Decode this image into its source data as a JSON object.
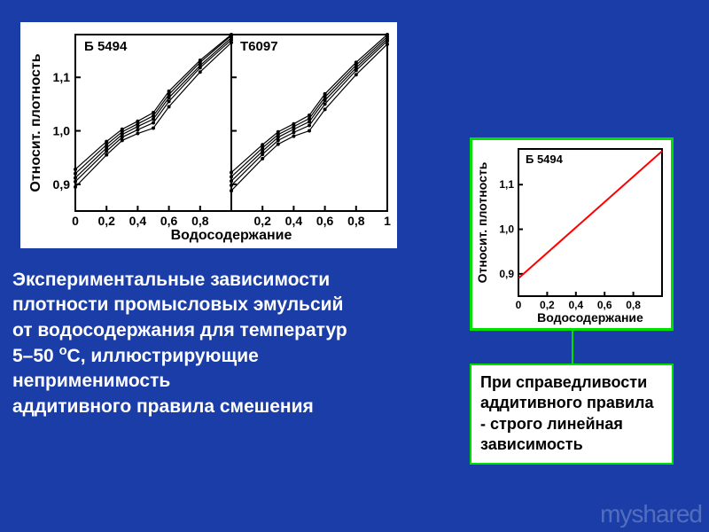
{
  "background_color": "#1a3da8",
  "left_chart": {
    "type": "line",
    "panels": [
      {
        "label": "Б 5494"
      },
      {
        "label": "Т6097"
      }
    ],
    "y_axis_label": "Относит. плотность",
    "x_axis_label": "Водосодержание",
    "ylim": [
      0.85,
      1.18
    ],
    "yticks": [
      0.9,
      1.0,
      1.1
    ],
    "ytick_labels": [
      "0,9",
      "1,0",
      "1,1"
    ],
    "xlim": [
      0,
      1
    ],
    "xticks": [
      0,
      0.2,
      0.4,
      0.6,
      0.8,
      1
    ],
    "xtick_labels_left": [
      "0",
      "0,2",
      "0,4",
      "0,6",
      "0,8",
      ""
    ],
    "xtick_labels_right": [
      "",
      "0,2",
      "0,4",
      "0,6",
      "0,8",
      "1"
    ],
    "line_color": "#000000",
    "marker": "circle",
    "marker_size": 2,
    "line_width": 1.2,
    "background_color": "#ffffff",
    "axis_color": "#000000",
    "label_fontsize": 16,
    "tick_fontsize": 14,
    "series_left": [
      [
        [
          0,
          0.895
        ],
        [
          0.2,
          0.955
        ],
        [
          0.3,
          0.982
        ],
        [
          0.4,
          0.995
        ],
        [
          0.5,
          1.005
        ],
        [
          0.6,
          1.045
        ],
        [
          0.8,
          1.11
        ],
        [
          1,
          1.165
        ]
      ],
      [
        [
          0,
          0.905
        ],
        [
          0.2,
          0.962
        ],
        [
          0.3,
          0.988
        ],
        [
          0.4,
          1.002
        ],
        [
          0.5,
          1.015
        ],
        [
          0.6,
          1.055
        ],
        [
          0.8,
          1.118
        ],
        [
          1,
          1.17
        ]
      ],
      [
        [
          0,
          0.912
        ],
        [
          0.2,
          0.968
        ],
        [
          0.3,
          0.993
        ],
        [
          0.4,
          1.008
        ],
        [
          0.5,
          1.022
        ],
        [
          0.6,
          1.062
        ],
        [
          0.8,
          1.122
        ],
        [
          1,
          1.174
        ]
      ],
      [
        [
          0,
          0.92
        ],
        [
          0.2,
          0.974
        ],
        [
          0.3,
          0.998
        ],
        [
          0.4,
          1.013
        ],
        [
          0.5,
          1.028
        ],
        [
          0.6,
          1.068
        ],
        [
          0.8,
          1.128
        ],
        [
          1,
          1.178
        ]
      ],
      [
        [
          0,
          0.928
        ],
        [
          0.2,
          0.98
        ],
        [
          0.3,
          1.003
        ],
        [
          0.4,
          1.018
        ],
        [
          0.5,
          1.034
        ],
        [
          0.6,
          1.074
        ],
        [
          0.8,
          1.132
        ],
        [
          1,
          1.18
        ]
      ]
    ],
    "series_right": [
      [
        [
          0,
          0.888
        ],
        [
          0.2,
          0.948
        ],
        [
          0.3,
          0.975
        ],
        [
          0.4,
          0.99
        ],
        [
          0.5,
          1.0
        ],
        [
          0.6,
          1.04
        ],
        [
          0.8,
          1.105
        ],
        [
          1,
          1.162
        ]
      ],
      [
        [
          0,
          0.898
        ],
        [
          0.2,
          0.956
        ],
        [
          0.3,
          0.982
        ],
        [
          0.4,
          0.997
        ],
        [
          0.5,
          1.01
        ],
        [
          0.6,
          1.05
        ],
        [
          0.8,
          1.113
        ],
        [
          1,
          1.168
        ]
      ],
      [
        [
          0,
          0.906
        ],
        [
          0.2,
          0.962
        ],
        [
          0.3,
          0.988
        ],
        [
          0.4,
          1.003
        ],
        [
          0.5,
          1.017
        ],
        [
          0.6,
          1.057
        ],
        [
          0.8,
          1.118
        ],
        [
          1,
          1.172
        ]
      ],
      [
        [
          0,
          0.914
        ],
        [
          0.2,
          0.968
        ],
        [
          0.3,
          0.993
        ],
        [
          0.4,
          1.008
        ],
        [
          0.5,
          1.023
        ],
        [
          0.6,
          1.063
        ],
        [
          0.8,
          1.123
        ],
        [
          1,
          1.176
        ]
      ],
      [
        [
          0,
          0.922
        ],
        [
          0.2,
          0.974
        ],
        [
          0.3,
          0.998
        ],
        [
          0.4,
          1.013
        ],
        [
          0.5,
          1.029
        ],
        [
          0.6,
          1.069
        ],
        [
          0.8,
          1.128
        ],
        [
          1,
          1.18
        ]
      ]
    ]
  },
  "right_chart": {
    "type": "line",
    "panel_label": "Б 5494",
    "y_axis_label": "Относит. плотность",
    "x_axis_label": "Водосодержание",
    "ylim": [
      0.85,
      1.18
    ],
    "yticks": [
      0.9,
      1.0,
      1.1
    ],
    "ytick_labels": [
      "0,9",
      "1,0",
      "1,1"
    ],
    "xlim": [
      0,
      1
    ],
    "xticks": [
      0,
      0.2,
      0.4,
      0.6,
      0.8,
      1
    ],
    "xtick_labels": [
      "0",
      "0,2",
      "0,4",
      "0,6",
      "0,8",
      ""
    ],
    "line_color": "#ff0000",
    "line_width": 2,
    "background_color": "#ffffff",
    "axis_color": "#000000",
    "border_color": "#00e000",
    "label_fontsize": 14,
    "tick_fontsize": 12,
    "series": [
      [
        0,
        0.89
      ],
      [
        1,
        1.175
      ]
    ]
  },
  "caption_left_lines": [
    "Экспериментальные зависимости",
    "плотности промысловых эмульсий",
    "от водосодержания для температур",
    "5–50 °С, иллюстрирующие",
    "неприменимость",
    "аддитивного правила смешения"
  ],
  "caption_left_text": "Экспериментальные зависимости плотности промысловых эмульсий от водосодержания для температур 5–50 °С, иллюстрирующие неприменимость аддитивного правила смешения",
  "caption_left_color": "#ffffff",
  "caption_left_fontsize": 21,
  "right_caption": {
    "line1": "При справедливости",
    "line2": "аддитивного правила",
    "dash": "- ",
    "line3": "строго линейная",
    "line4": "зависимость",
    "border_color": "#00e000",
    "background": "#ffffff",
    "text_color": "#000000",
    "fontsize": 18
  },
  "watermark": "myshared"
}
